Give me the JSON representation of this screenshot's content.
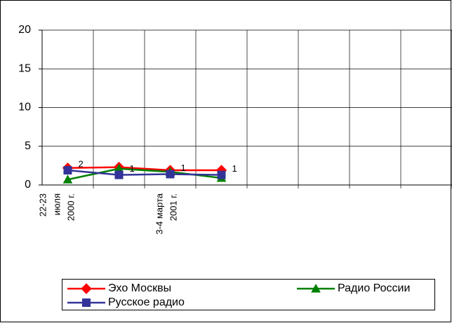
{
  "chart_data": {
    "type": "line",
    "categories": [
      "22-23\nиюля\n2000 г.",
      null,
      "3-4 марта\n2001 г.",
      null,
      null,
      null,
      null,
      null
    ],
    "series": [
      {
        "name": "Эхо Москвы",
        "color": "#ff0000",
        "marker": "diamond",
        "values": [
          2.2,
          2.3,
          1.9,
          1.9,
          null,
          null,
          null,
          null
        ]
      },
      {
        "name": "Радио России",
        "color": "#008000",
        "marker": "triangle",
        "values": [
          0.7,
          2.1,
          1.7,
          0.9,
          null,
          null,
          null,
          null
        ]
      },
      {
        "name": "Русское радио",
        "color": "#333399",
        "marker": "square",
        "values": [
          1.9,
          1.3,
          1.4,
          1.3,
          null,
          null,
          null,
          null
        ],
        "value_labels": [
          "2",
          "1",
          "1",
          "1",
          null,
          null,
          null,
          null
        ]
      }
    ],
    "ylim": [
      0,
      20
    ],
    "yticks": [
      0,
      5,
      10,
      15,
      20
    ],
    "grid": true
  }
}
